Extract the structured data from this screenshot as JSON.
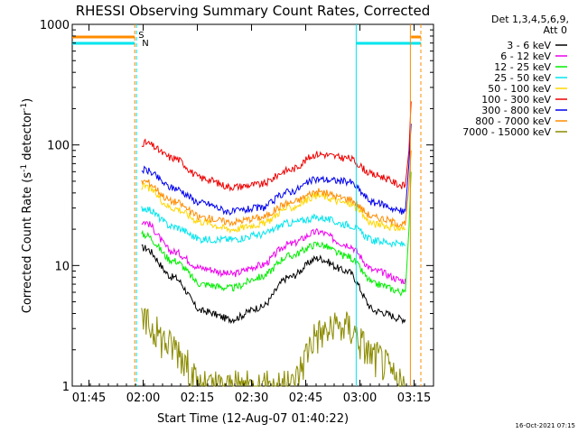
{
  "chart_data": {
    "type": "line",
    "title": "RHESSI Observing Summary Count Rates, Corrected",
    "xlabel": "Start Time (12-Aug-07 01:40:22)",
    "ylabel_main": "Corrected Count Rate (s",
    "ylabel_sup1": "-1",
    "ylabel_mid": " detector",
    "ylabel_sup2": "-1",
    "ylabel_end": ")",
    "footer": "16-Oct-2021 07:15",
    "yscale": "log",
    "ylim": [
      1,
      1000
    ],
    "xlim_minutes": [
      0,
      100
    ],
    "x_ticks": [
      {
        "label": "01:45",
        "minute": 4.63
      },
      {
        "label": "02:00",
        "minute": 19.63
      },
      {
        "label": "02:15",
        "minute": 34.63
      },
      {
        "label": "02:30",
        "minute": 49.63
      },
      {
        "label": "02:45",
        "minute": 64.63
      },
      {
        "label": "03:00",
        "minute": 79.63
      },
      {
        "label": "03:15",
        "minute": 94.63
      }
    ],
    "y_ticks": [
      {
        "label": "1",
        "value": 1
      },
      {
        "label": "10",
        "value": 10
      },
      {
        "label": "100",
        "value": 100
      },
      {
        "label": "1000",
        "value": 1000
      }
    ],
    "legend_header": [
      "Det 1,3,4,5,6,9,",
      "Att 0"
    ],
    "flags": [
      {
        "label": "S",
        "color": "#ff8c00"
      },
      {
        "label": "N",
        "color": "#00e5ee"
      }
    ],
    "series": [
      {
        "name": "3 - 6 keV",
        "color": "#000000",
        "values": [
          14,
          8,
          4.2,
          3.6,
          4.5,
          8,
          11.5,
          9,
          4.2,
          3.6
        ]
      },
      {
        "name": "6 - 12 keV",
        "color": "#ee00ee",
        "values": [
          23,
          13,
          9.5,
          8.5,
          10,
          15,
          19,
          15,
          9,
          7.5
        ]
      },
      {
        "name": "12 - 25 keV",
        "color": "#00ee00",
        "values": [
          18,
          11,
          7,
          6.5,
          8,
          12,
          15,
          12,
          7,
          6
        ]
      },
      {
        "name": "25 - 50 keV",
        "color": "#00e5ee",
        "values": [
          30,
          21,
          16.5,
          16.5,
          18,
          22.5,
          25,
          22,
          16,
          15
        ]
      },
      {
        "name": "50 - 100 keV",
        "color": "#ffd700",
        "values": [
          45,
          30,
          23,
          20,
          22,
          30,
          38,
          33,
          22,
          20
        ]
      },
      {
        "name": "100 - 300 keV",
        "color": "#ee0000",
        "values": [
          104,
          78,
          53,
          45,
          47,
          62,
          84,
          78,
          56,
          46
        ]
      },
      {
        "name": "300 - 800 keV",
        "color": "#0000ee",
        "values": [
          62,
          44,
          33,
          28,
          30,
          41,
          52,
          50,
          33,
          28
        ]
      },
      {
        "name": "800 - 7000 keV",
        "color": "#ff8c00",
        "values": [
          50,
          34,
          25,
          23,
          25,
          33,
          41,
          36,
          25,
          22
        ]
      },
      {
        "name": "7000 - 15000 keV",
        "color": "#8b8b00",
        "values": [
          3.4,
          2.2,
          1,
          1,
          1,
          1,
          2.8,
          3.2,
          1.8,
          1
        ]
      }
    ],
    "sample_minutes": [
      20,
      28,
      36,
      44,
      52,
      60,
      68,
      76,
      84,
      92
    ]
  }
}
